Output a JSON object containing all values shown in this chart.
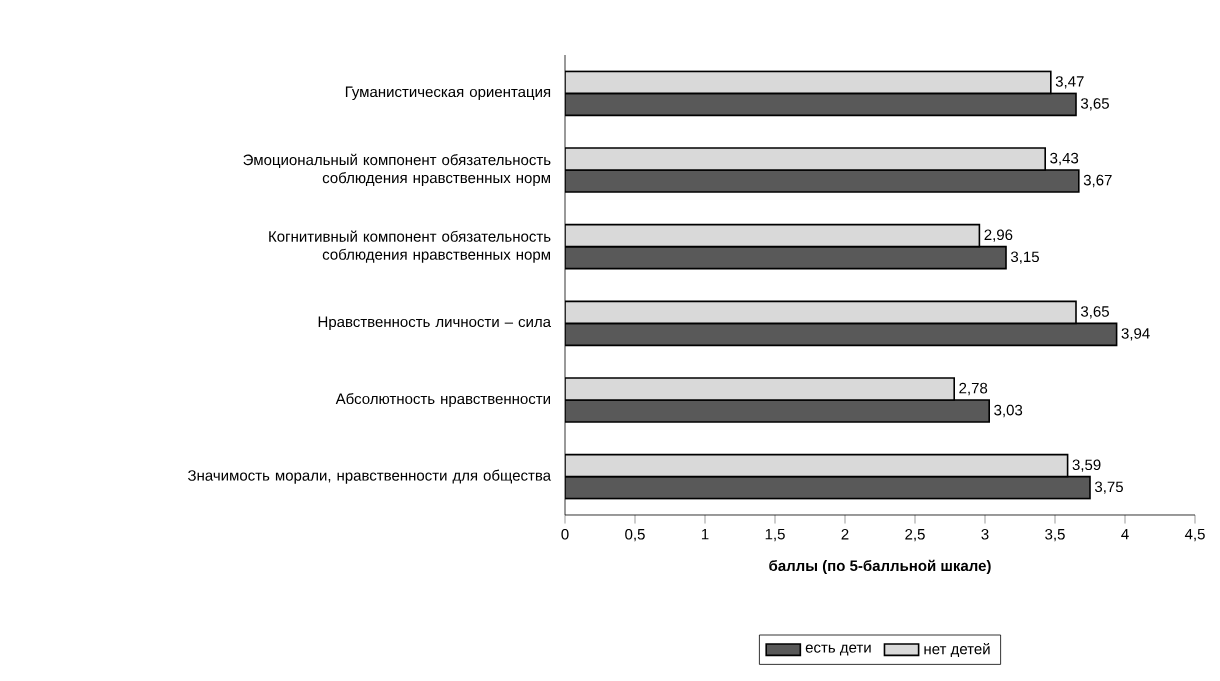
{
  "chart_data": {
    "type": "bar",
    "orientation": "horizontal",
    "categories": [
      "Гуманистическая ориентация",
      "Эмоциональный компонент обязательность соблюдения нравственных норм",
      "Когнитивный компонент обязательность соблюдения нравственных норм",
      "Нравственность личности – сила",
      "Абсолютность нравственности",
      "Значимость морали, нравственности для общества"
    ],
    "series": [
      {
        "name": "есть дети",
        "color": "#595959",
        "values": [
          3.65,
          3.67,
          3.15,
          3.94,
          3.03,
          3.75
        ],
        "value_labels": [
          "3,65",
          "3,67",
          "3,15",
          "3,94",
          "3,03",
          "3,75"
        ]
      },
      {
        "name": "нет детей",
        "color": "#d9d9d9",
        "values": [
          3.47,
          3.43,
          2.96,
          3.65,
          2.78,
          3.59
        ],
        "value_labels": [
          "3,47",
          "3,43",
          "2,96",
          "3,65",
          "2,78",
          "3,59"
        ]
      }
    ],
    "xlabel": "баллы (по 5-балльной шкале)",
    "xlim": [
      0,
      4.5
    ],
    "xticks": [
      0,
      {
        "value": 0.5,
        "label": "0,5"
      },
      1,
      {
        "value": 1.5,
        "label": "1,5"
      },
      2,
      {
        "value": 2.5,
        "label": "2,5"
      },
      3,
      {
        "value": 3.5,
        "label": "3,5"
      },
      4,
      {
        "value": 4.5,
        "label": "4,5"
      }
    ],
    "legend": "bottom"
  }
}
